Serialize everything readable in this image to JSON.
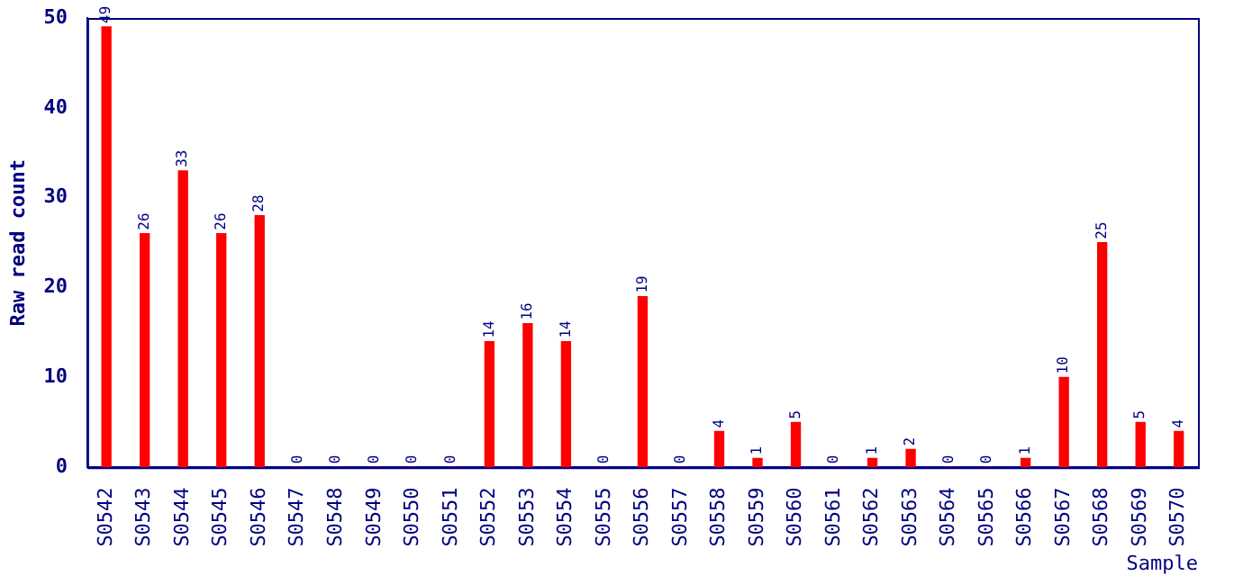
{
  "chart_data": {
    "type": "bar",
    "xlabel": "Sample",
    "ylabel": "Raw read count",
    "categories": [
      "S0542",
      "S0543",
      "S0544",
      "S0545",
      "S0546",
      "S0547",
      "S0548",
      "S0549",
      "S0550",
      "S0551",
      "S0552",
      "S0553",
      "S0554",
      "S0555",
      "S0556",
      "S0557",
      "S0558",
      "S0559",
      "S0560",
      "S0561",
      "S0562",
      "S0563",
      "S0564",
      "S0565",
      "S0566",
      "S0567",
      "S0568",
      "S0569",
      "S0570"
    ],
    "values": [
      49,
      26,
      33,
      26,
      28,
      0,
      0,
      0,
      0,
      0,
      14,
      16,
      14,
      0,
      19,
      0,
      4,
      1,
      5,
      0,
      1,
      2,
      0,
      0,
      1,
      10,
      25,
      5,
      4
    ],
    "color": "#ff0000",
    "ylim": [
      0,
      50
    ],
    "yticks": [
      0,
      10,
      20,
      30,
      40,
      50
    ],
    "grid": false,
    "data_labels": true
  }
}
